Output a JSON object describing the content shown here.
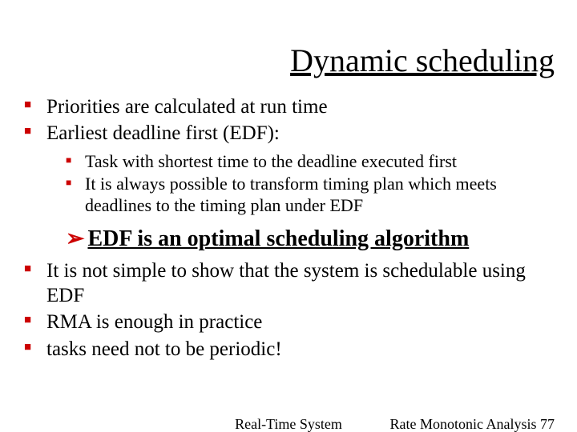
{
  "colors": {
    "bullet": "#cc0000",
    "text": "#000000",
    "background": "#ffffff"
  },
  "title": "Dynamic scheduling",
  "bullets_top": {
    "b1": "Priorities are calculated at run time",
    "b2": "Earliest deadline first (EDF):",
    "b2_sub": {
      "s1": "Task with shortest time to the deadline executed first",
      "s2": "It is always possible to transform timing plan which meets deadlines to the timing plan under EDF"
    }
  },
  "highlight": "EDF is an optimal scheduling algorithm",
  "bullets_bottom": {
    "b1": "It is not simple to show that the system is schedulable using EDF",
    "b2": "RMA is enough in practice",
    "b3": "tasks need not to be periodic!"
  },
  "footer": {
    "center": "Real-Time System",
    "right_label": "Rate Monotonic Analysis",
    "right_page": "77"
  }
}
